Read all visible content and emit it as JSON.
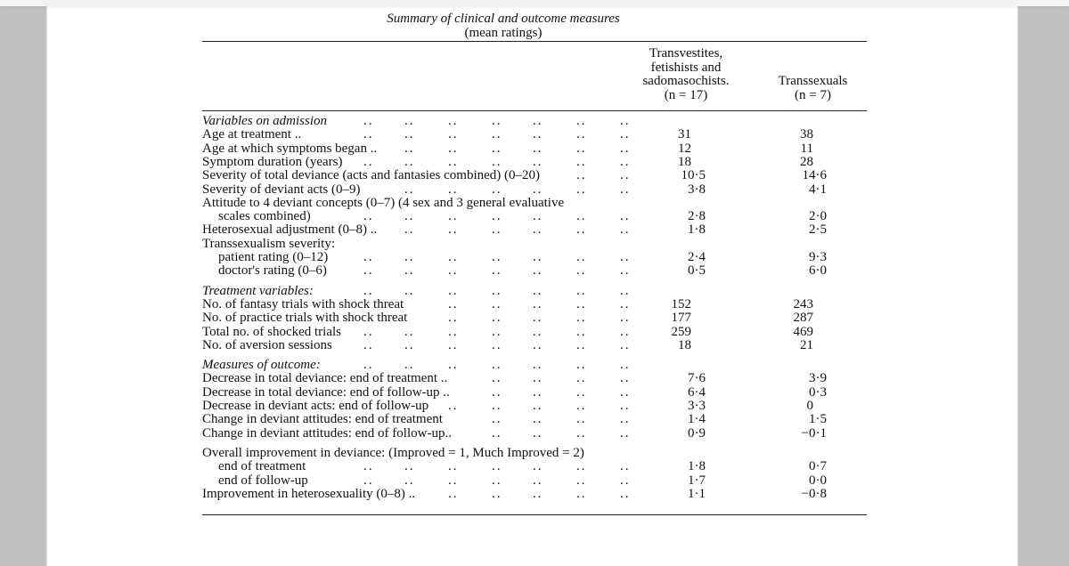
{
  "table": {
    "title": "Summary of clinical and outcome measures",
    "subtitle": "(mean ratings)",
    "columns": [
      {
        "lines": [
          "Transvestites,",
          "fetishists and",
          "sadomasochists.",
          "(n = 17)"
        ]
      },
      {
        "lines": [
          "Transsexuals",
          "(n = 7)"
        ]
      }
    ],
    "rows": [
      {
        "label": "Variables on admission",
        "style": "section",
        "v1": "",
        "v2": ""
      },
      {
        "label": "Age at treatment ..",
        "v1": "31",
        "v2": "38"
      },
      {
        "label": "Age at which symptoms began ..",
        "v1": "12",
        "v2": "11"
      },
      {
        "label": "Symptom duration (years)",
        "v1": "18",
        "v2": "28"
      },
      {
        "label": "Severity of total deviance (acts and fantasies combined) (0–20)",
        "v1": "10·5",
        "v2": "14·6"
      },
      {
        "label": "Severity of deviant acts (0–9)",
        "v1": "3·8",
        "v2": "4·1"
      },
      {
        "label": "Attitude to 4 deviant concepts (0–7) (4 sex and 3 general evaluative",
        "style": "nodots",
        "v1": "",
        "v2": ""
      },
      {
        "label": "scales combined)",
        "style": "indent",
        "v1": "2·8",
        "v2": "2·0"
      },
      {
        "label": "Heterosexual adjustment (0–8) ..",
        "v1": "1·8",
        "v2": "2·5"
      },
      {
        "label": "Transsexualism severity:",
        "style": "nodots",
        "v1": "",
        "v2": ""
      },
      {
        "label": "patient rating (0–12)",
        "style": "indent",
        "v1": "2·4",
        "v2": "9·3"
      },
      {
        "label": "doctor's rating (0–6)",
        "style": "indent",
        "v1": "0·5",
        "v2": "6·0"
      },
      {
        "label": "Treatment variables:",
        "style": "section",
        "gap": true,
        "v1": "",
        "v2": ""
      },
      {
        "label": "No. of fantasy trials with shock threat",
        "v1": "152",
        "v2": "243"
      },
      {
        "label": "No. of practice trials with shock threat",
        "v1": "177",
        "v2": "287"
      },
      {
        "label": "Total no. of shocked trials",
        "v1": "259",
        "v2": "469"
      },
      {
        "label": "No. of aversion sessions",
        "v1": "18",
        "v2": "21"
      },
      {
        "label": "Measures of outcome:",
        "style": "section",
        "gap": true,
        "v1": "",
        "v2": ""
      },
      {
        "label": "Decrease in total deviance: end of treatment ..",
        "v1": "7·6",
        "v2": "3·9"
      },
      {
        "label": "Decrease in total deviance: end of follow-up ..",
        "v1": "6·4",
        "v2": "0·3"
      },
      {
        "label": "Decrease in deviant acts: end of follow-up",
        "v1": "3·3",
        "v2": "0"
      },
      {
        "label": "Change in deviant attitudes: end of treatment",
        "v1": "1·4",
        "v2": "1·5"
      },
      {
        "label": "Change in deviant attitudes: end of follow-up..",
        "v1": "0·9",
        "v2": "−0·1"
      },
      {
        "label": "Overall improvement in deviance: (Improved = 1, Much Improved = 2)",
        "style": "nodots",
        "gap": true,
        "v1": "",
        "v2": ""
      },
      {
        "label": "end of treatment",
        "style": "indent",
        "v1": "1·8",
        "v2": "0·7"
      },
      {
        "label": "end of follow-up",
        "style": "indent",
        "v1": "1·7",
        "v2": "0·0"
      },
      {
        "label": "Improvement in heterosexuality (0–8) ..",
        "v1": "1·1",
        "v2": "−0·8"
      }
    ]
  }
}
